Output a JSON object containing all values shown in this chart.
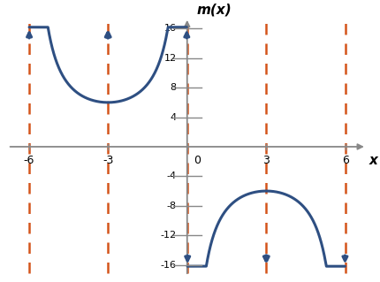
{
  "title": "m(x)",
  "xlabel": "x",
  "xlim": [
    -7.0,
    7.0
  ],
  "ylim": [
    -18,
    18
  ],
  "xaxis_lim": [
    -6.8,
    6.8
  ],
  "yaxis_lim": [
    -17.5,
    17.5
  ],
  "xticks": [
    -6,
    -3,
    0,
    3,
    6
  ],
  "yticks": [
    -16,
    -12,
    -8,
    -4,
    4,
    8,
    12,
    16
  ],
  "asymptotes": [
    -6,
    -3,
    0,
    3,
    6
  ],
  "amplitude": -6,
  "period": 6,
  "curve_color": "#2E4F82",
  "asymptote_color": "#D4541A",
  "axis_color": "#888888",
  "background_color": "#ffffff",
  "linewidth": 2.2,
  "asymptote_linewidth": 1.8,
  "clip_y": 16.2
}
